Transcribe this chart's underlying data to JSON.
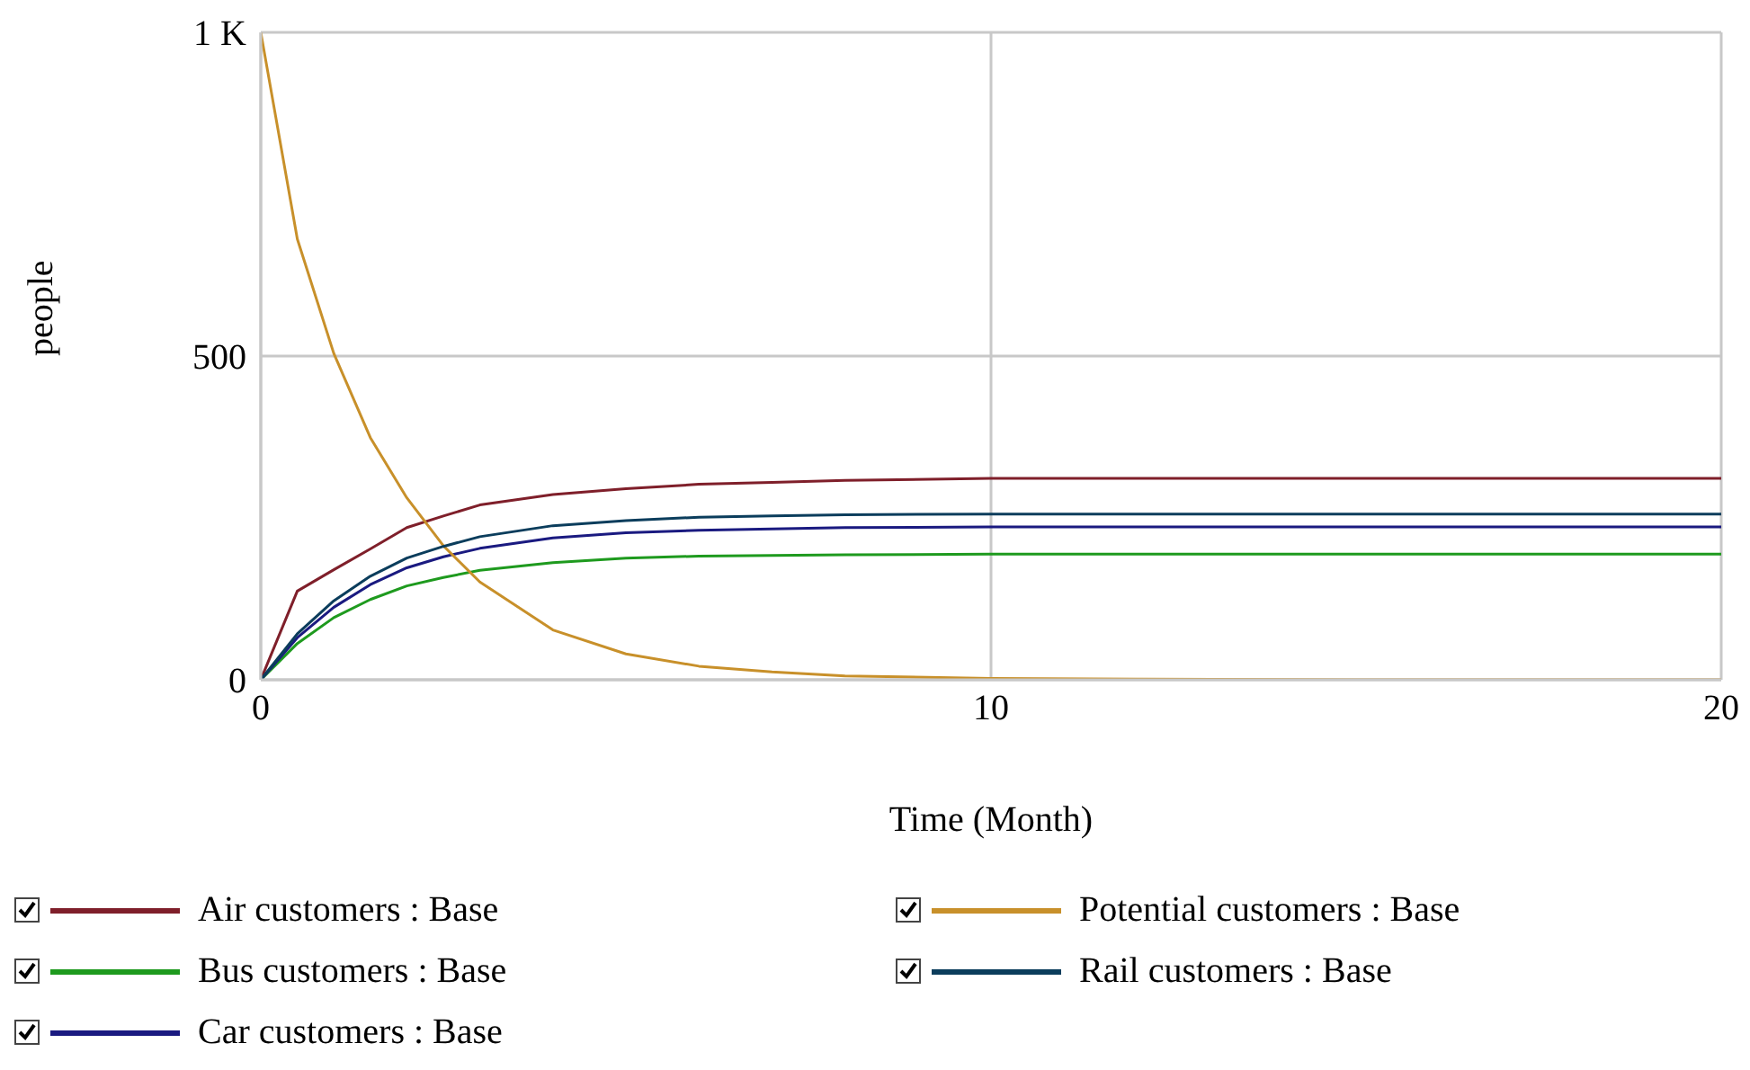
{
  "chart_data": {
    "type": "line",
    "xlabel": "Time (Month)",
    "ylabel": "people",
    "x": [
      0,
      0.5,
      1,
      1.5,
      2,
      2.5,
      3,
      4,
      5,
      6,
      7,
      8,
      10,
      12,
      15,
      20
    ],
    "series": [
      {
        "name": "Air customers : Base",
        "color": "#7f1f2a",
        "values": [
          0,
          137,
          170,
          202,
          235,
          253,
          270,
          286,
          295,
          302,
          305,
          308,
          311,
          311,
          311,
          311
        ]
      },
      {
        "name": "Bus customers : Base",
        "color": "#1e9a1e",
        "values": [
          0,
          56,
          96,
          124,
          145,
          158,
          169,
          181,
          188,
          191,
          192,
          193,
          194,
          194,
          194,
          194
        ]
      },
      {
        "name": "Car customers : Base",
        "color": "#1a1a80",
        "values": [
          0,
          65,
          112,
          147,
          173,
          190,
          203,
          219,
          227,
          231,
          233,
          235,
          236,
          236,
          236,
          236
        ]
      },
      {
        "name": "Potential customers : Base",
        "color": "#c8902a",
        "values": [
          1000,
          681,
          504,
          374,
          281,
          207,
          151,
          77,
          40,
          21,
          12,
          6,
          2,
          1,
          0,
          0
        ]
      },
      {
        "name": "Rail customers : Base",
        "color": "#0b3d5c",
        "values": [
          0,
          71,
          122,
          160,
          188,
          206,
          221,
          238,
          246,
          251,
          253,
          255,
          256,
          256,
          256,
          256
        ]
      }
    ],
    "xlim": [
      0,
      20
    ],
    "xticks": [
      0,
      10,
      20
    ],
    "ylim": [
      0,
      1000
    ],
    "yticks": [
      0,
      500,
      {
        "value": 1000,
        "label": "1 K"
      }
    ],
    "grid": true,
    "legend": "bottom",
    "marker": "none",
    "line_style": "solid"
  }
}
